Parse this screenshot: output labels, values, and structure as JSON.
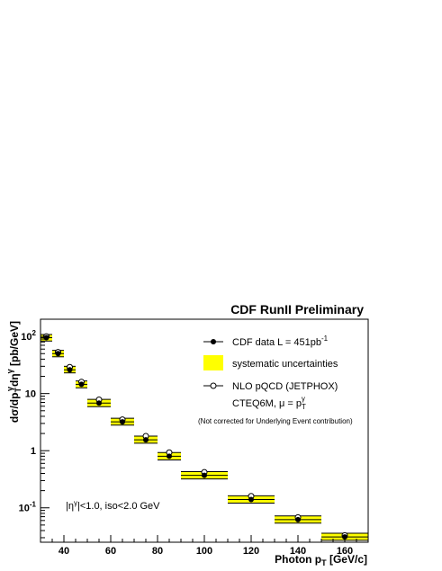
{
  "chart_data": {
    "type": "scatter",
    "title": "CDF RunII Preliminary",
    "xlabel": "Photon p",
    "xlabel_sub": "T",
    "xlabel_unit": " [GeV/c]",
    "ylabel": "dσ/dp",
    "ylabel_sub1": "T",
    "ylabel_sup1": "γ",
    "ylabel_mid": "dη",
    "ylabel_sup2": "γ",
    "ylabel_unit": " [pb/GeV]",
    "x_scale": "linear",
    "y_scale": "log",
    "xlim": [
      30,
      170
    ],
    "ylim": [
      0.025,
      200
    ],
    "x_ticks": [
      40,
      60,
      80,
      100,
      120,
      140,
      160
    ],
    "y_ticks": [
      {
        "value": 100,
        "base": "10",
        "sup": "2"
      },
      {
        "value": 10,
        "base": "10",
        "sup": ""
      },
      {
        "value": 1,
        "base": "1",
        "sup": ""
      },
      {
        "value": 0.1,
        "base": "10",
        "sup": "-1"
      }
    ],
    "legend_placement": "top-right",
    "legend": {
      "data_label": "CDF data L = 451pb",
      "data_sup": "-1",
      "syst_label": "systematic uncertainties",
      "nlo_label": "NLO pQCD (JETPHOX)",
      "cteq_label": "CTEQ6M, μ = p",
      "cteq_sub": "T",
      "cteq_sup": "γ",
      "note": "(Not corrected for Underlying Event contribution)"
    },
    "annotation": "|η",
    "annotation_sup": "γ",
    "annotation_rest": "|<1.0, iso<2.0 GeV",
    "colors": {
      "systematic": "#ffff00",
      "data": "#000000",
      "nlo": "#ffffff"
    },
    "series": [
      {
        "name": "CDF data L = 451pb-1",
        "marker": "filled-circle",
        "points": [
          {
            "x_low": 30,
            "x_high": 35,
            "x": 32.5,
            "y": 95,
            "syst_low": 83,
            "syst_high": 108
          },
          {
            "x_low": 35,
            "x_high": 40,
            "x": 37.5,
            "y": 50,
            "syst_low": 44,
            "syst_high": 57
          },
          {
            "x_low": 40,
            "x_high": 45,
            "x": 42.5,
            "y": 26,
            "syst_low": 23,
            "syst_high": 30
          },
          {
            "x_low": 45,
            "x_high": 50,
            "x": 47.5,
            "y": 14.5,
            "syst_low": 12.6,
            "syst_high": 16.6
          },
          {
            "x_low": 50,
            "x_high": 60,
            "x": 55,
            "y": 6.8,
            "syst_low": 5.9,
            "syst_high": 7.9
          },
          {
            "x_low": 60,
            "x_high": 70,
            "x": 65,
            "y": 3.2,
            "syst_low": 2.8,
            "syst_high": 3.7
          },
          {
            "x_low": 70,
            "x_high": 80,
            "x": 75,
            "y": 1.55,
            "syst_low": 1.35,
            "syst_high": 1.8
          },
          {
            "x_low": 80,
            "x_high": 90,
            "x": 85,
            "y": 0.8,
            "syst_low": 0.69,
            "syst_high": 0.93
          },
          {
            "x_low": 90,
            "x_high": 110,
            "x": 100,
            "y": 0.37,
            "syst_low": 0.32,
            "syst_high": 0.43
          },
          {
            "x_low": 110,
            "x_high": 130,
            "x": 120,
            "y": 0.14,
            "syst_low": 0.121,
            "syst_high": 0.162
          },
          {
            "x_low": 130,
            "x_high": 150,
            "x": 140,
            "y": 0.062,
            "syst_low": 0.054,
            "syst_high": 0.072
          },
          {
            "x_low": 150,
            "x_high": 170,
            "x": 160,
            "y": 0.031,
            "syst_low": 0.027,
            "syst_high": 0.036
          }
        ]
      },
      {
        "name": "NLO pQCD (JETPHOX)",
        "marker": "open-circle",
        "points": [
          {
            "x": 32.5,
            "y": 100
          },
          {
            "x": 37.5,
            "y": 53
          },
          {
            "x": 42.5,
            "y": 29
          },
          {
            "x": 47.5,
            "y": 16
          },
          {
            "x": 55,
            "y": 7.8
          },
          {
            "x": 65,
            "y": 3.5
          },
          {
            "x": 75,
            "y": 1.8
          },
          {
            "x": 85,
            "y": 0.93
          },
          {
            "x": 100,
            "y": 0.42
          },
          {
            "x": 120,
            "y": 0.16
          },
          {
            "x": 140,
            "y": 0.068
          },
          {
            "x": 160,
            "y": 0.033
          }
        ]
      }
    ]
  }
}
